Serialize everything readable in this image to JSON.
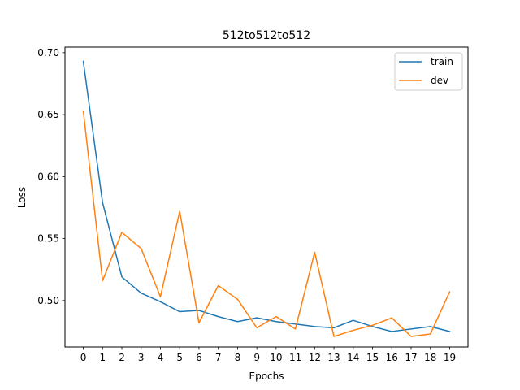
{
  "chart_data": {
    "type": "line",
    "title": "512to512to512",
    "xlabel": "Epochs",
    "ylabel": "Loss",
    "x": [
      0,
      1,
      2,
      3,
      4,
      5,
      6,
      7,
      8,
      9,
      10,
      11,
      12,
      13,
      14,
      15,
      16,
      17,
      18,
      19
    ],
    "xticks": [
      "0",
      "1",
      "2",
      "3",
      "4",
      "5",
      "6",
      "7",
      "8",
      "9",
      "10",
      "11",
      "12",
      "13",
      "14",
      "15",
      "16",
      "17",
      "18",
      "19"
    ],
    "yticks": [
      "0.50",
      "0.55",
      "0.60",
      "0.65",
      "0.70"
    ],
    "ylim": [
      0.4625,
      0.7045
    ],
    "xlim": [
      -0.95,
      19.95
    ],
    "grid": false,
    "legend_position": "top-right",
    "series": [
      {
        "name": "train",
        "color": "#1f77b4",
        "values": [
          0.693,
          0.579,
          0.519,
          0.506,
          0.499,
          0.491,
          0.492,
          0.487,
          0.483,
          0.486,
          0.483,
          0.481,
          0.479,
          0.478,
          0.484,
          0.479,
          0.475,
          0.477,
          0.479,
          0.475
        ]
      },
      {
        "name": "dev",
        "color": "#ff7f0e",
        "values": [
          0.653,
          0.516,
          0.555,
          0.542,
          0.503,
          0.572,
          0.482,
          0.512,
          0.501,
          0.478,
          0.487,
          0.477,
          0.539,
          0.471,
          0.476,
          0.48,
          0.486,
          0.471,
          0.473,
          0.507
        ]
      }
    ]
  }
}
